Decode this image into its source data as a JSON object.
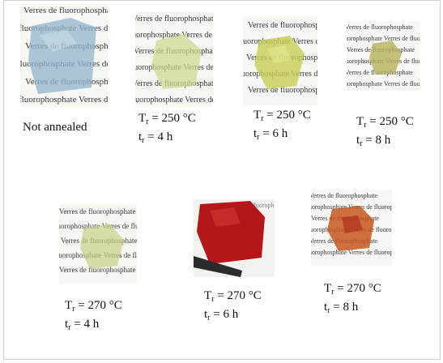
{
  "background_text": {
    "line_a": "Verres de fluorophosphate",
    "line_b": "fluorophosphate Verres de fluorophosphate"
  },
  "samples": [
    {
      "caption_line1": "Not annealed",
      "caption_line2": "",
      "glass_color": "#8fb4cc"
    },
    {
      "caption_line1": "T",
      "sub1": "r",
      "rest1": " = 250 °C",
      "caption_line2": "t",
      "sub2": "r",
      "rest2": " = 4 h",
      "glass_color": "#c9d98a"
    },
    {
      "caption_line1": "T",
      "sub1": "r",
      "rest1": " = 250 °C",
      "caption_line2": "t",
      "sub2": "r",
      "rest2": " = 6 h",
      "glass_color": "#c6cd52"
    },
    {
      "caption_line1": "T",
      "sub1": "r",
      "rest1": " = 250 °C",
      "caption_line2": "t",
      "sub2": "r",
      "rest2": " = 8 h",
      "glass_color": "#b7b25a"
    },
    {
      "caption_line1": "T",
      "sub1": "r",
      "rest1": " = 270 °C",
      "caption_line2": "t",
      "sub2": "r",
      "rest2": " = 4 h",
      "glass_color": "#c9cf88"
    },
    {
      "caption_line1": "T",
      "sub1": "r",
      "rest1": " = 270 °C",
      "caption_line2": "t",
      "sub2": "r",
      "rest2": " = 6 h",
      "glass_color": "#b5161a"
    },
    {
      "caption_line1": "T",
      "sub1": "r",
      "rest1": " = 270 °C",
      "caption_line2": "t",
      "sub2": "r",
      "rest2": " = 8 h",
      "glass_color": "#c8561d"
    }
  ]
}
